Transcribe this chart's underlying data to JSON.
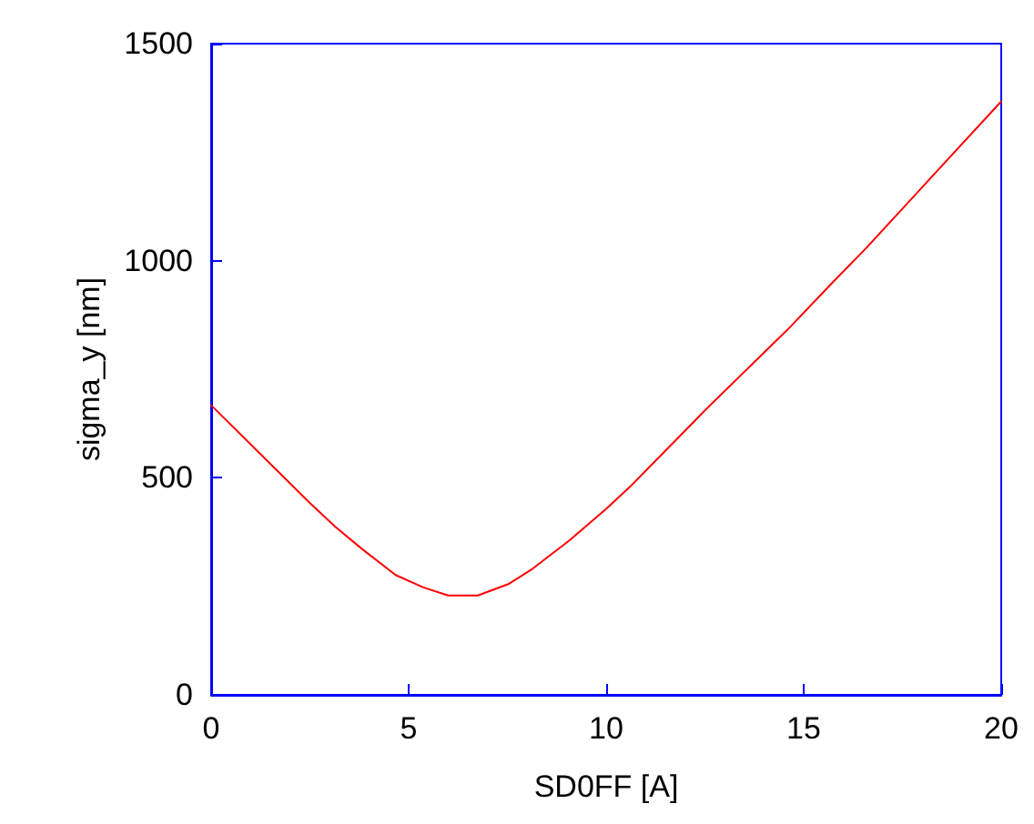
{
  "chart_data": {
    "type": "line",
    "xlabel": "SD0FF [A]",
    "ylabel": "sigma_y [nm]",
    "x": [
      0,
      2.51,
      3.13,
      3.82,
      4.67,
      5.36,
      6.0,
      6.75,
      7.52,
      8.13,
      9.06,
      9.98,
      10.6,
      12.53,
      14.6,
      15.7,
      16.6,
      18.3,
      20
    ],
    "series": [
      {
        "color": "#ff0000",
        "values": [
          667,
          441,
          388,
          336,
          276,
          248,
          229,
          229,
          255,
          290,
          355,
          427,
          479,
          658,
          842,
          947,
          1031,
          1199,
          1367
        ]
      }
    ],
    "xlim": [
      0,
      20
    ],
    "xticks": [
      0,
      5,
      10,
      15,
      20
    ],
    "ylim": [
      0,
      1500
    ],
    "yticks": [
      0,
      500,
      1000,
      1500
    ],
    "grid": false,
    "marker": "none",
    "line_style": "solid"
  }
}
